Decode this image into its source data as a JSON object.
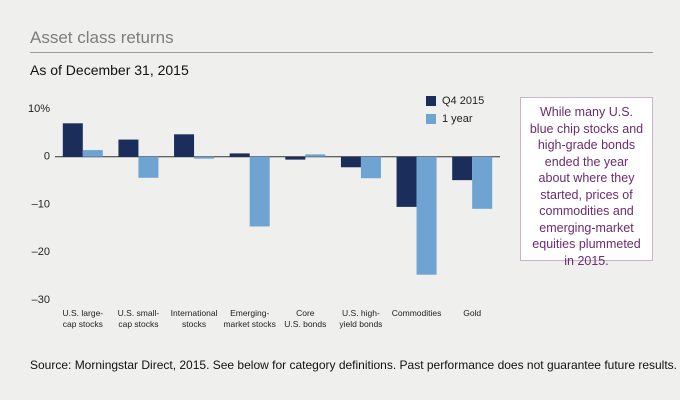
{
  "chart_data": {
    "type": "bar",
    "title": "Asset class returns",
    "subtitle": "As of December 31, 2015",
    "categories": [
      "U.S. large-\ncap stocks",
      "U.S. small-\ncap stocks",
      "International\nstocks",
      "Emerging-\nmarket stocks",
      "Core\nU.S. bonds",
      "U.S. high-\nyield bonds",
      "Commodities",
      "Gold"
    ],
    "series": [
      {
        "name": "Q4 2015",
        "color": "#1b2d5a",
        "values": [
          7.0,
          3.6,
          4.7,
          0.7,
          -0.6,
          -2.2,
          -10.5,
          -4.9
        ]
      },
      {
        "name": "1 year",
        "color": "#6fa3d2",
        "values": [
          1.4,
          -4.4,
          -0.4,
          -14.6,
          0.5,
          -4.5,
          -24.7,
          -10.9
        ]
      }
    ],
    "ylim": [
      -30,
      10
    ],
    "yticks": [
      {
        "value": 10,
        "label": "10%"
      },
      0,
      {
        "value": -10,
        "label": "–10"
      },
      {
        "value": -20,
        "label": "–20"
      },
      {
        "value": -30,
        "label": "–30"
      }
    ],
    "annotation": "While many U.S. blue chip stocks and high-grade bonds ended the year about where they started, prices of commodi­ties and emerging-market equities plummeted in 2015.",
    "source": "Source: Morningstar Direct, 2015. See below for category definitions. Past performance does not guarantee future results."
  }
}
